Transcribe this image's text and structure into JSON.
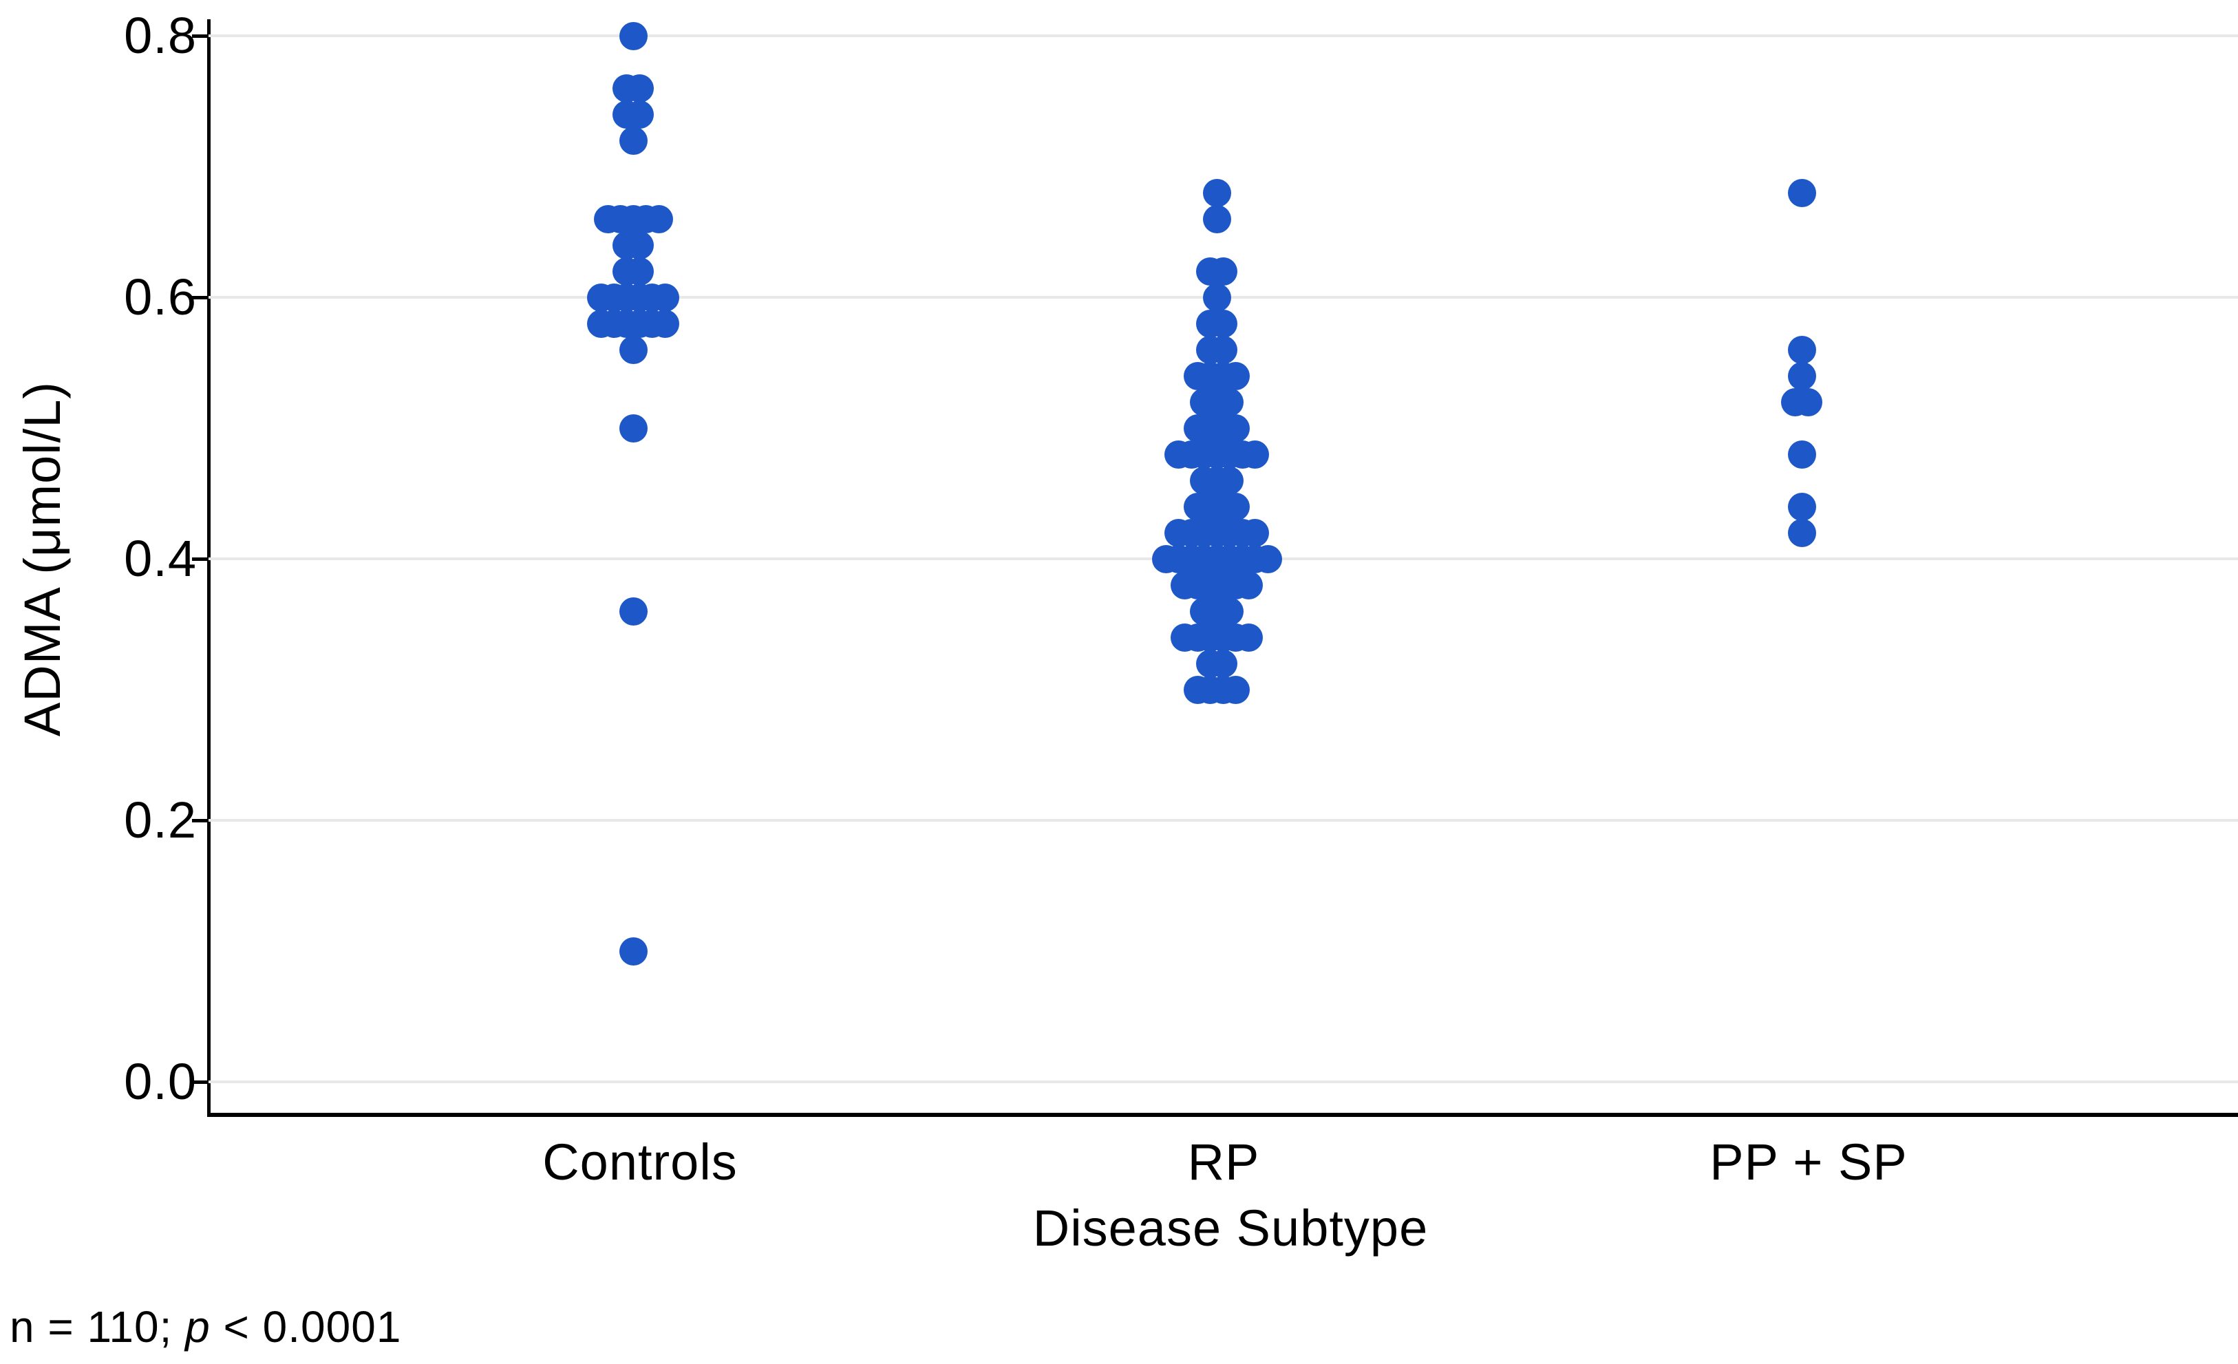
{
  "figure": {
    "y_axis": {
      "title": "ADMA (μmol/L)",
      "tick_labels": [
        "0.8",
        "0.6",
        "0.4",
        "0.2",
        "0.0"
      ]
    },
    "x_axis": {
      "title": "Disease Subtype",
      "categories": [
        "Controls",
        "RP",
        "PP + SP"
      ]
    },
    "footnote": {
      "prefix": "n = 110; ",
      "italic_term": "p",
      "suffix": " < 0.0001"
    },
    "colors": {
      "dot": "#1D57C8",
      "gridline": "#E8E8E8",
      "axis": "#000000",
      "text": "#000000"
    }
  },
  "chart_data": {
    "type": "scatter",
    "subtype": "strip-dot-plot",
    "title": "",
    "xlabel": "Disease Subtype",
    "ylabel": "ADMA (μmol/L)",
    "ylim": [
      0.0,
      0.8
    ],
    "yticks": [
      0.0,
      0.2,
      0.4,
      0.6,
      0.8
    ],
    "grid": "horizontal",
    "legend": "none",
    "categories": [
      "Controls",
      "RP",
      "PP + SP"
    ],
    "n_total": 110,
    "significance_note": "n = 110; p < 0.0001",
    "series": [
      {
        "name": "Controls",
        "n": 31,
        "value_counts": [
          [
            0.8,
            1
          ],
          [
            0.76,
            2
          ],
          [
            0.74,
            2
          ],
          [
            0.72,
            1
          ],
          [
            0.66,
            5
          ],
          [
            0.64,
            2
          ],
          [
            0.62,
            2
          ],
          [
            0.6,
            6
          ],
          [
            0.58,
            6
          ],
          [
            0.56,
            1
          ],
          [
            0.5,
            1
          ],
          [
            0.36,
            1
          ],
          [
            0.1,
            1
          ]
        ]
      },
      {
        "name": "RP",
        "n": 71,
        "value_counts": [
          [
            0.68,
            1
          ],
          [
            0.66,
            1
          ],
          [
            0.62,
            2
          ],
          [
            0.6,
            1
          ],
          [
            0.58,
            2
          ],
          [
            0.56,
            2
          ],
          [
            0.54,
            4
          ],
          [
            0.52,
            3
          ],
          [
            0.5,
            4
          ],
          [
            0.48,
            7
          ],
          [
            0.46,
            3
          ],
          [
            0.44,
            4
          ],
          [
            0.42,
            7
          ],
          [
            0.4,
            9
          ],
          [
            0.38,
            6
          ],
          [
            0.36,
            3
          ],
          [
            0.34,
            6
          ],
          [
            0.32,
            2
          ],
          [
            0.3,
            4
          ]
        ]
      },
      {
        "name": "PP + SP",
        "n": 8,
        "value_counts": [
          [
            0.68,
            1
          ],
          [
            0.56,
            1
          ],
          [
            0.54,
            1
          ],
          [
            0.52,
            2
          ],
          [
            0.48,
            1
          ],
          [
            0.44,
            1
          ],
          [
            0.42,
            1
          ]
        ]
      }
    ]
  }
}
